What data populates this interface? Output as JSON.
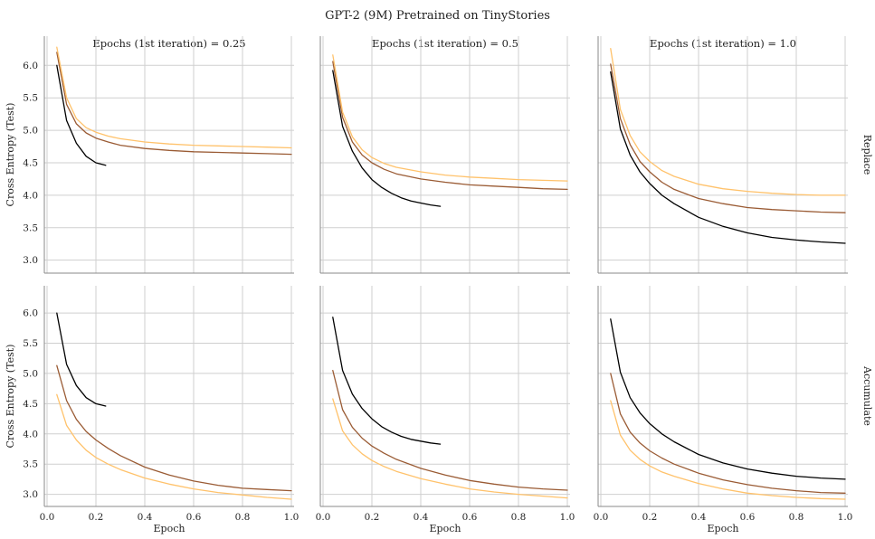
{
  "colors": {
    "grid": "#cfcfcf",
    "axis": "#8a8a8a",
    "series": [
      "#000000",
      "#9a5b34",
      "#ffc26b"
    ]
  },
  "chart_data": {
    "type": "line",
    "title": "GPT-2 (9M) Pretrained on TinyStories",
    "xlabel": "Epoch",
    "ylabel": "Cross Entropy (Test)",
    "xlim": [
      0.0,
      1.0
    ],
    "ylim": [
      2.8,
      6.45
    ],
    "xticks": [
      "0.0",
      "0.2",
      "0.4",
      "0.6",
      "0.8",
      "1.0"
    ],
    "yticks": [
      "3.0",
      "3.5",
      "4.0",
      "4.5",
      "5.0",
      "5.5",
      "6.0"
    ],
    "grid": true,
    "columns": [
      "Epochs (1st iteration) = 0.25",
      "Epochs (1st iteration) = 0.5",
      "Epochs (1st iteration) = 1.0"
    ],
    "rows": [
      "Replace",
      "Accumulate"
    ],
    "panels": [
      {
        "row": "Replace",
        "column": "Epochs (1st iteration) = 0.25",
        "series": [
          {
            "x": [
              0.04,
              0.08,
              0.12,
              0.16,
              0.2,
              0.24
            ],
            "y": [
              6.0,
              5.15,
              4.8,
              4.6,
              4.5,
              4.46
            ]
          },
          {
            "x": [
              0.04,
              0.08,
              0.12,
              0.16,
              0.2,
              0.25,
              0.3,
              0.4,
              0.5,
              0.6,
              0.7,
              0.8,
              0.9,
              1.0
            ],
            "y": [
              6.2,
              5.4,
              5.1,
              4.96,
              4.88,
              4.82,
              4.77,
              4.72,
              4.69,
              4.67,
              4.66,
              4.65,
              4.64,
              4.63
            ]
          },
          {
            "x": [
              0.04,
              0.08,
              0.12,
              0.16,
              0.2,
              0.25,
              0.3,
              0.4,
              0.5,
              0.6,
              0.7,
              0.8,
              0.9,
              1.0
            ],
            "y": [
              6.28,
              5.5,
              5.18,
              5.04,
              4.97,
              4.91,
              4.87,
              4.82,
              4.79,
              4.77,
              4.76,
              4.75,
              4.74,
              4.73
            ]
          }
        ]
      },
      {
        "row": "Replace",
        "column": "Epochs (1st iteration) = 0.5",
        "series": [
          {
            "x": [
              0.04,
              0.08,
              0.12,
              0.16,
              0.2,
              0.24,
              0.28,
              0.32,
              0.36,
              0.4,
              0.44,
              0.48
            ],
            "y": [
              5.92,
              5.06,
              4.68,
              4.42,
              4.24,
              4.12,
              4.03,
              3.96,
              3.91,
              3.88,
              3.85,
              3.83
            ]
          },
          {
            "x": [
              0.04,
              0.08,
              0.12,
              0.16,
              0.2,
              0.25,
              0.3,
              0.4,
              0.5,
              0.6,
              0.7,
              0.8,
              0.9,
              1.0
            ],
            "y": [
              6.06,
              5.2,
              4.82,
              4.62,
              4.5,
              4.4,
              4.33,
              4.25,
              4.2,
              4.16,
              4.14,
              4.12,
              4.1,
              4.09
            ]
          },
          {
            "x": [
              0.04,
              0.08,
              0.12,
              0.16,
              0.2,
              0.25,
              0.3,
              0.4,
              0.5,
              0.6,
              0.7,
              0.8,
              0.9,
              1.0
            ],
            "y": [
              6.16,
              5.28,
              4.9,
              4.7,
              4.58,
              4.49,
              4.43,
              4.36,
              4.31,
              4.28,
              4.26,
              4.24,
              4.23,
              4.22
            ]
          }
        ]
      },
      {
        "row": "Replace",
        "column": "Epochs (1st iteration) = 1.0",
        "series": [
          {
            "x": [
              0.04,
              0.08,
              0.12,
              0.16,
              0.2,
              0.25,
              0.3,
              0.4,
              0.5,
              0.6,
              0.7,
              0.8,
              0.9,
              1.0
            ],
            "y": [
              5.9,
              5.02,
              4.62,
              4.36,
              4.18,
              4.0,
              3.87,
              3.66,
              3.52,
              3.42,
              3.35,
              3.31,
              3.28,
              3.26
            ]
          },
          {
            "x": [
              0.04,
              0.08,
              0.12,
              0.16,
              0.2,
              0.25,
              0.3,
              0.4,
              0.5,
              0.6,
              0.7,
              0.8,
              0.9,
              1.0
            ],
            "y": [
              6.02,
              5.18,
              4.78,
              4.52,
              4.36,
              4.2,
              4.09,
              3.95,
              3.87,
              3.81,
              3.78,
              3.76,
              3.74,
              3.73
            ]
          },
          {
            "x": [
              0.04,
              0.08,
              0.12,
              0.16,
              0.2,
              0.25,
              0.3,
              0.4,
              0.5,
              0.6,
              0.7,
              0.8,
              0.9,
              1.0
            ],
            "y": [
              6.26,
              5.32,
              4.92,
              4.67,
              4.52,
              4.38,
              4.29,
              4.17,
              4.1,
              4.06,
              4.03,
              4.01,
              4.0,
              4.0
            ]
          }
        ]
      },
      {
        "row": "Accumulate",
        "column": "Epochs (1st iteration) = 0.25",
        "series": [
          {
            "x": [
              0.04,
              0.08,
              0.12,
              0.16,
              0.2,
              0.24
            ],
            "y": [
              6.0,
              5.15,
              4.8,
              4.6,
              4.5,
              4.46
            ]
          },
          {
            "x": [
              0.04,
              0.08,
              0.12,
              0.16,
              0.2,
              0.25,
              0.3,
              0.4,
              0.5,
              0.6,
              0.7,
              0.8,
              0.9,
              1.0
            ],
            "y": [
              5.13,
              4.55,
              4.24,
              4.04,
              3.9,
              3.76,
              3.64,
              3.45,
              3.32,
              3.22,
              3.15,
              3.1,
              3.08,
              3.06
            ]
          },
          {
            "x": [
              0.04,
              0.08,
              0.12,
              0.16,
              0.2,
              0.25,
              0.3,
              0.4,
              0.5,
              0.6,
              0.7,
              0.8,
              0.9,
              1.0
            ],
            "y": [
              4.65,
              4.14,
              3.9,
              3.73,
              3.61,
              3.5,
              3.41,
              3.27,
              3.17,
              3.09,
              3.03,
              2.99,
              2.95,
              2.92
            ]
          }
        ]
      },
      {
        "row": "Accumulate",
        "column": "Epochs (1st iteration) = 0.5",
        "series": [
          {
            "x": [
              0.04,
              0.08,
              0.12,
              0.16,
              0.2,
              0.24,
              0.28,
              0.32,
              0.36,
              0.4,
              0.44,
              0.48
            ],
            "y": [
              5.93,
              5.05,
              4.66,
              4.42,
              4.25,
              4.12,
              4.03,
              3.96,
              3.91,
              3.88,
              3.85,
              3.83
            ]
          },
          {
            "x": [
              0.04,
              0.08,
              0.12,
              0.16,
              0.2,
              0.25,
              0.3,
              0.4,
              0.5,
              0.6,
              0.7,
              0.8,
              0.9,
              1.0
            ],
            "y": [
              5.05,
              4.4,
              4.11,
              3.93,
              3.8,
              3.68,
              3.58,
              3.43,
              3.32,
              3.23,
              3.17,
              3.12,
              3.09,
              3.07
            ]
          },
          {
            "x": [
              0.04,
              0.08,
              0.12,
              0.16,
              0.2,
              0.25,
              0.3,
              0.4,
              0.5,
              0.6,
              0.7,
              0.8,
              0.9,
              1.0
            ],
            "y": [
              4.58,
              4.05,
              3.82,
              3.67,
              3.56,
              3.46,
              3.38,
              3.26,
              3.17,
              3.09,
              3.04,
              3.0,
              2.97,
              2.94
            ]
          }
        ]
      },
      {
        "row": "Accumulate",
        "column": "Epochs (1st iteration) = 1.0",
        "series": [
          {
            "x": [
              0.04,
              0.08,
              0.12,
              0.16,
              0.2,
              0.25,
              0.3,
              0.4,
              0.5,
              0.6,
              0.7,
              0.8,
              0.9,
              1.0
            ],
            "y": [
              5.9,
              5.02,
              4.6,
              4.35,
              4.17,
              4.0,
              3.87,
              3.66,
              3.52,
              3.42,
              3.35,
              3.3,
              3.27,
              3.25
            ]
          },
          {
            "x": [
              0.04,
              0.08,
              0.12,
              0.16,
              0.2,
              0.25,
              0.3,
              0.4,
              0.5,
              0.6,
              0.7,
              0.8,
              0.9,
              1.0
            ],
            "y": [
              5.0,
              4.33,
              4.03,
              3.85,
              3.72,
              3.6,
              3.5,
              3.35,
              3.24,
              3.16,
              3.1,
              3.06,
              3.03,
              3.02
            ]
          },
          {
            "x": [
              0.04,
              0.08,
              0.12,
              0.16,
              0.2,
              0.25,
              0.3,
              0.4,
              0.5,
              0.6,
              0.7,
              0.8,
              0.9,
              1.0
            ],
            "y": [
              4.55,
              3.98,
              3.73,
              3.58,
              3.47,
              3.37,
              3.3,
              3.18,
              3.09,
              3.02,
              2.98,
              2.95,
              2.93,
              2.92
            ]
          }
        ]
      }
    ]
  }
}
